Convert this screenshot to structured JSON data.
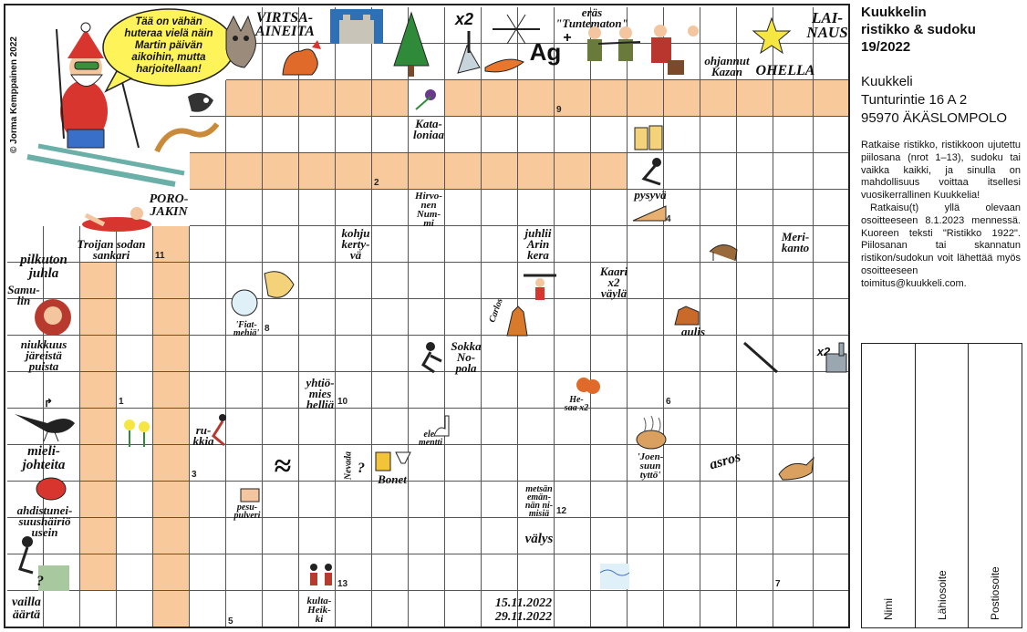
{
  "copyright": "© Jorma Kemppainen 2022",
  "speech_bubble": "Tää on vähän\nhuteraa vielä näin\nMartin päivän\naikoihin, mutta\nharjoitellaan!",
  "clues": {
    "virtsa": "VIRTSA-\nAINEITA",
    "x2_top": "x2",
    "tuntematon": "eräs\n\"Tuntematon\"",
    "ag": "Ag",
    "ag_plus": "+",
    "lainaus": "LAI-\nNAUS",
    "ohjannut": "ohjannut\nKazan",
    "ohella": "OHELLA",
    "kataloniaa": "Kata-\nloniaa",
    "porojakin": "PORO-\nJAKIN",
    "troijan": "Troijan sodan\nsankari",
    "hirvonen": "Hirvo-\nnen\nNum-\nmi",
    "pysyva": "pysyvä",
    "kohju": "kohju\nkerty-\nvä",
    "juhlii": "juhlii\nArin\nkera",
    "merikanto": "Meri-\nkanto",
    "pilkuton": "pilkuton\njuhla",
    "samulin": "Samu-\nlin",
    "kaari": "Kaari\nx2\nväylä",
    "fiat": "'Fiat-\nmehiä'",
    "carlos": "Carlos",
    "aulis": "aulis",
    "niukkuus": "niukkuus\njäreistä\npuista",
    "sokka": "Sokka\nNo-\npola",
    "x2_right": "x2",
    "yhtiomies": "yhtiö-\nmies\nhelliä",
    "hesaa": "He-\nsaa x2",
    "rukkia": "ru-\nkkia",
    "elementti": "ele-\nmentti",
    "mielijohteita": "mieli-\njohteita",
    "nevada": "Nevada",
    "question1": "?",
    "bonet": "Bonet",
    "joensuun": "'Joen-\nsuun\ntyttö'",
    "asros": "asros",
    "pesupulveri": "pesu-\npulveri",
    "ahdistunei": "ahdistunei-\nsuushäiriö\nusein",
    "metsan": "metsän\nemän-\nnän ni-\nmisiä",
    "valys": "välys",
    "question2": "?",
    "kultaheikki": "kulta-\nHeik-\nki",
    "vailla": "vailla\näärtä",
    "dates": "15.11.2022\n29.11.2022"
  },
  "numbers": [
    "1",
    "2",
    "3",
    "4",
    "5",
    "6",
    "7",
    "8",
    "9",
    "10",
    "11",
    "12",
    "13"
  ],
  "sidebar": {
    "title": "Kuukkelin\nristikko & sudoku\n19/2022",
    "address": "Kuukkeli\nTunturintie 16 A 2\n95970 ÄKÄSLOMPOLO",
    "para1": "Ratkaise ristikko, ristikkoon ujutettu piilosana (nrot 1–13), sudoku tai vaikka kaikki, ja sinulla on mahdollisuus voittaa itsellesi vuosikerrallinen Kuukkelia!",
    "para2": "Ratkaisu(t) yllä olevaan osoitteeseen 8.1.2023 mennessä. Kuoreen teksti \"Ristikko 1922\". Piilosanan tai skannatun ristikon/sudokun voit lähettää myös osoitteeseen toimitus@kuukkeli.com.",
    "form_fields": [
      "Nimi",
      "Lähiosoite",
      "Postiosoite"
    ]
  },
  "colors": {
    "shade": "#f7c99b",
    "grid_line": "#555555",
    "bubble": "#fff35a"
  }
}
